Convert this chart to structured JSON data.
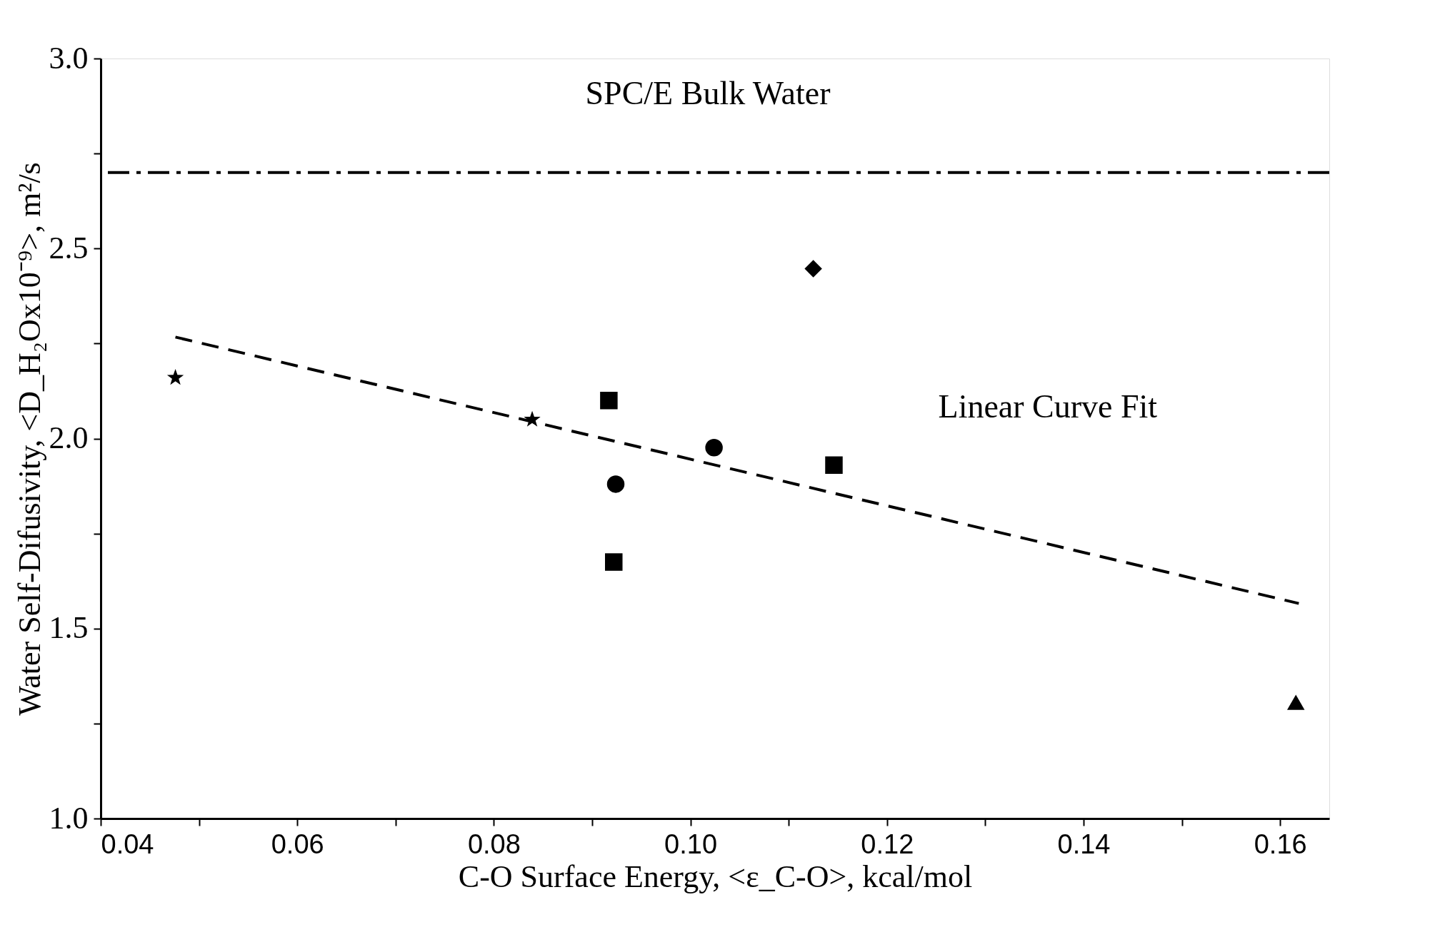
{
  "chart_data": {
    "type": "scatter",
    "xlabel": "C-O Surface Energy, <ε_C-O>, kcal/mol",
    "ylabel": "Water Self-Difusivity, <D_H₂Ox10⁻⁹>, m²/s",
    "xlim": [
      0.04,
      0.165
    ],
    "ylim": [
      1.0,
      3.0
    ],
    "xticks": [
      {
        "value": 0.04,
        "label": "0.04"
      },
      {
        "value": 0.05,
        "label": null
      },
      {
        "value": 0.06,
        "label": "0.06"
      },
      {
        "value": 0.07,
        "label": null
      },
      {
        "value": 0.08,
        "label": "0.08"
      },
      {
        "value": 0.09,
        "label": null
      },
      {
        "value": 0.1,
        "label": "0.10"
      },
      {
        "value": 0.11,
        "label": null
      },
      {
        "value": 0.12,
        "label": "0.12"
      },
      {
        "value": 0.13,
        "label": null
      },
      {
        "value": 0.14,
        "label": "0.14"
      },
      {
        "value": 0.15,
        "label": null
      },
      {
        "value": 0.16,
        "label": "0.16"
      }
    ],
    "yticks": [
      {
        "value": 1.0,
        "label": "1.0"
      },
      {
        "value": 1.25,
        "label": null
      },
      {
        "value": 1.5,
        "label": "1.5"
      },
      {
        "value": 1.75,
        "label": null
      },
      {
        "value": 2.0,
        "label": "2.0"
      },
      {
        "value": 2.25,
        "label": null
      },
      {
        "value": 2.5,
        "label": "2.5"
      },
      {
        "value": 2.75,
        "label": null
      },
      {
        "value": 3.0,
        "label": "3.0"
      }
    ],
    "grid": false,
    "series": [
      {
        "marker": "star",
        "color": "#000000",
        "x": [
          0.0476
        ],
        "values": [
          2.16
        ]
      },
      {
        "marker": "star",
        "color": "#000000",
        "x": [
          0.0839
        ],
        "values": [
          2.05
        ]
      },
      {
        "marker": "square",
        "color": "#000000",
        "x": [
          0.0917
        ],
        "values": [
          2.1
        ]
      },
      {
        "marker": "circle",
        "color": "#000000",
        "x": [
          0.0924
        ],
        "values": [
          1.88
        ]
      },
      {
        "marker": "square",
        "color": "#000000",
        "x": [
          0.0922
        ],
        "values": [
          1.675
        ]
      },
      {
        "marker": "circle",
        "color": "#000000",
        "x": [
          0.1024
        ],
        "values": [
          1.976
        ]
      },
      {
        "marker": "diamond",
        "color": "#000000",
        "x": [
          0.1125
        ],
        "values": [
          2.447
        ]
      },
      {
        "marker": "square",
        "color": "#000000",
        "x": [
          0.1146
        ],
        "values": [
          1.93
        ]
      },
      {
        "marker": "triangle",
        "color": "#000000",
        "x": [
          0.1616
        ],
        "values": [
          1.306
        ]
      },
      {
        "type": "line",
        "line_style": "dashed",
        "color": "#000000",
        "x": [
          0.0476,
          0.1619
        ],
        "values": [
          2.267,
          1.566
        ]
      }
    ],
    "ref_lines": [
      {
        "axis": "y",
        "value": 2.7,
        "label": "SPC/E Bulk Water",
        "line_style": "dashdot",
        "color": "#000000"
      }
    ],
    "annotations": [
      {
        "text": "Linear Curve Fit",
        "x": 0.124,
        "y": 1.81
      }
    ]
  }
}
